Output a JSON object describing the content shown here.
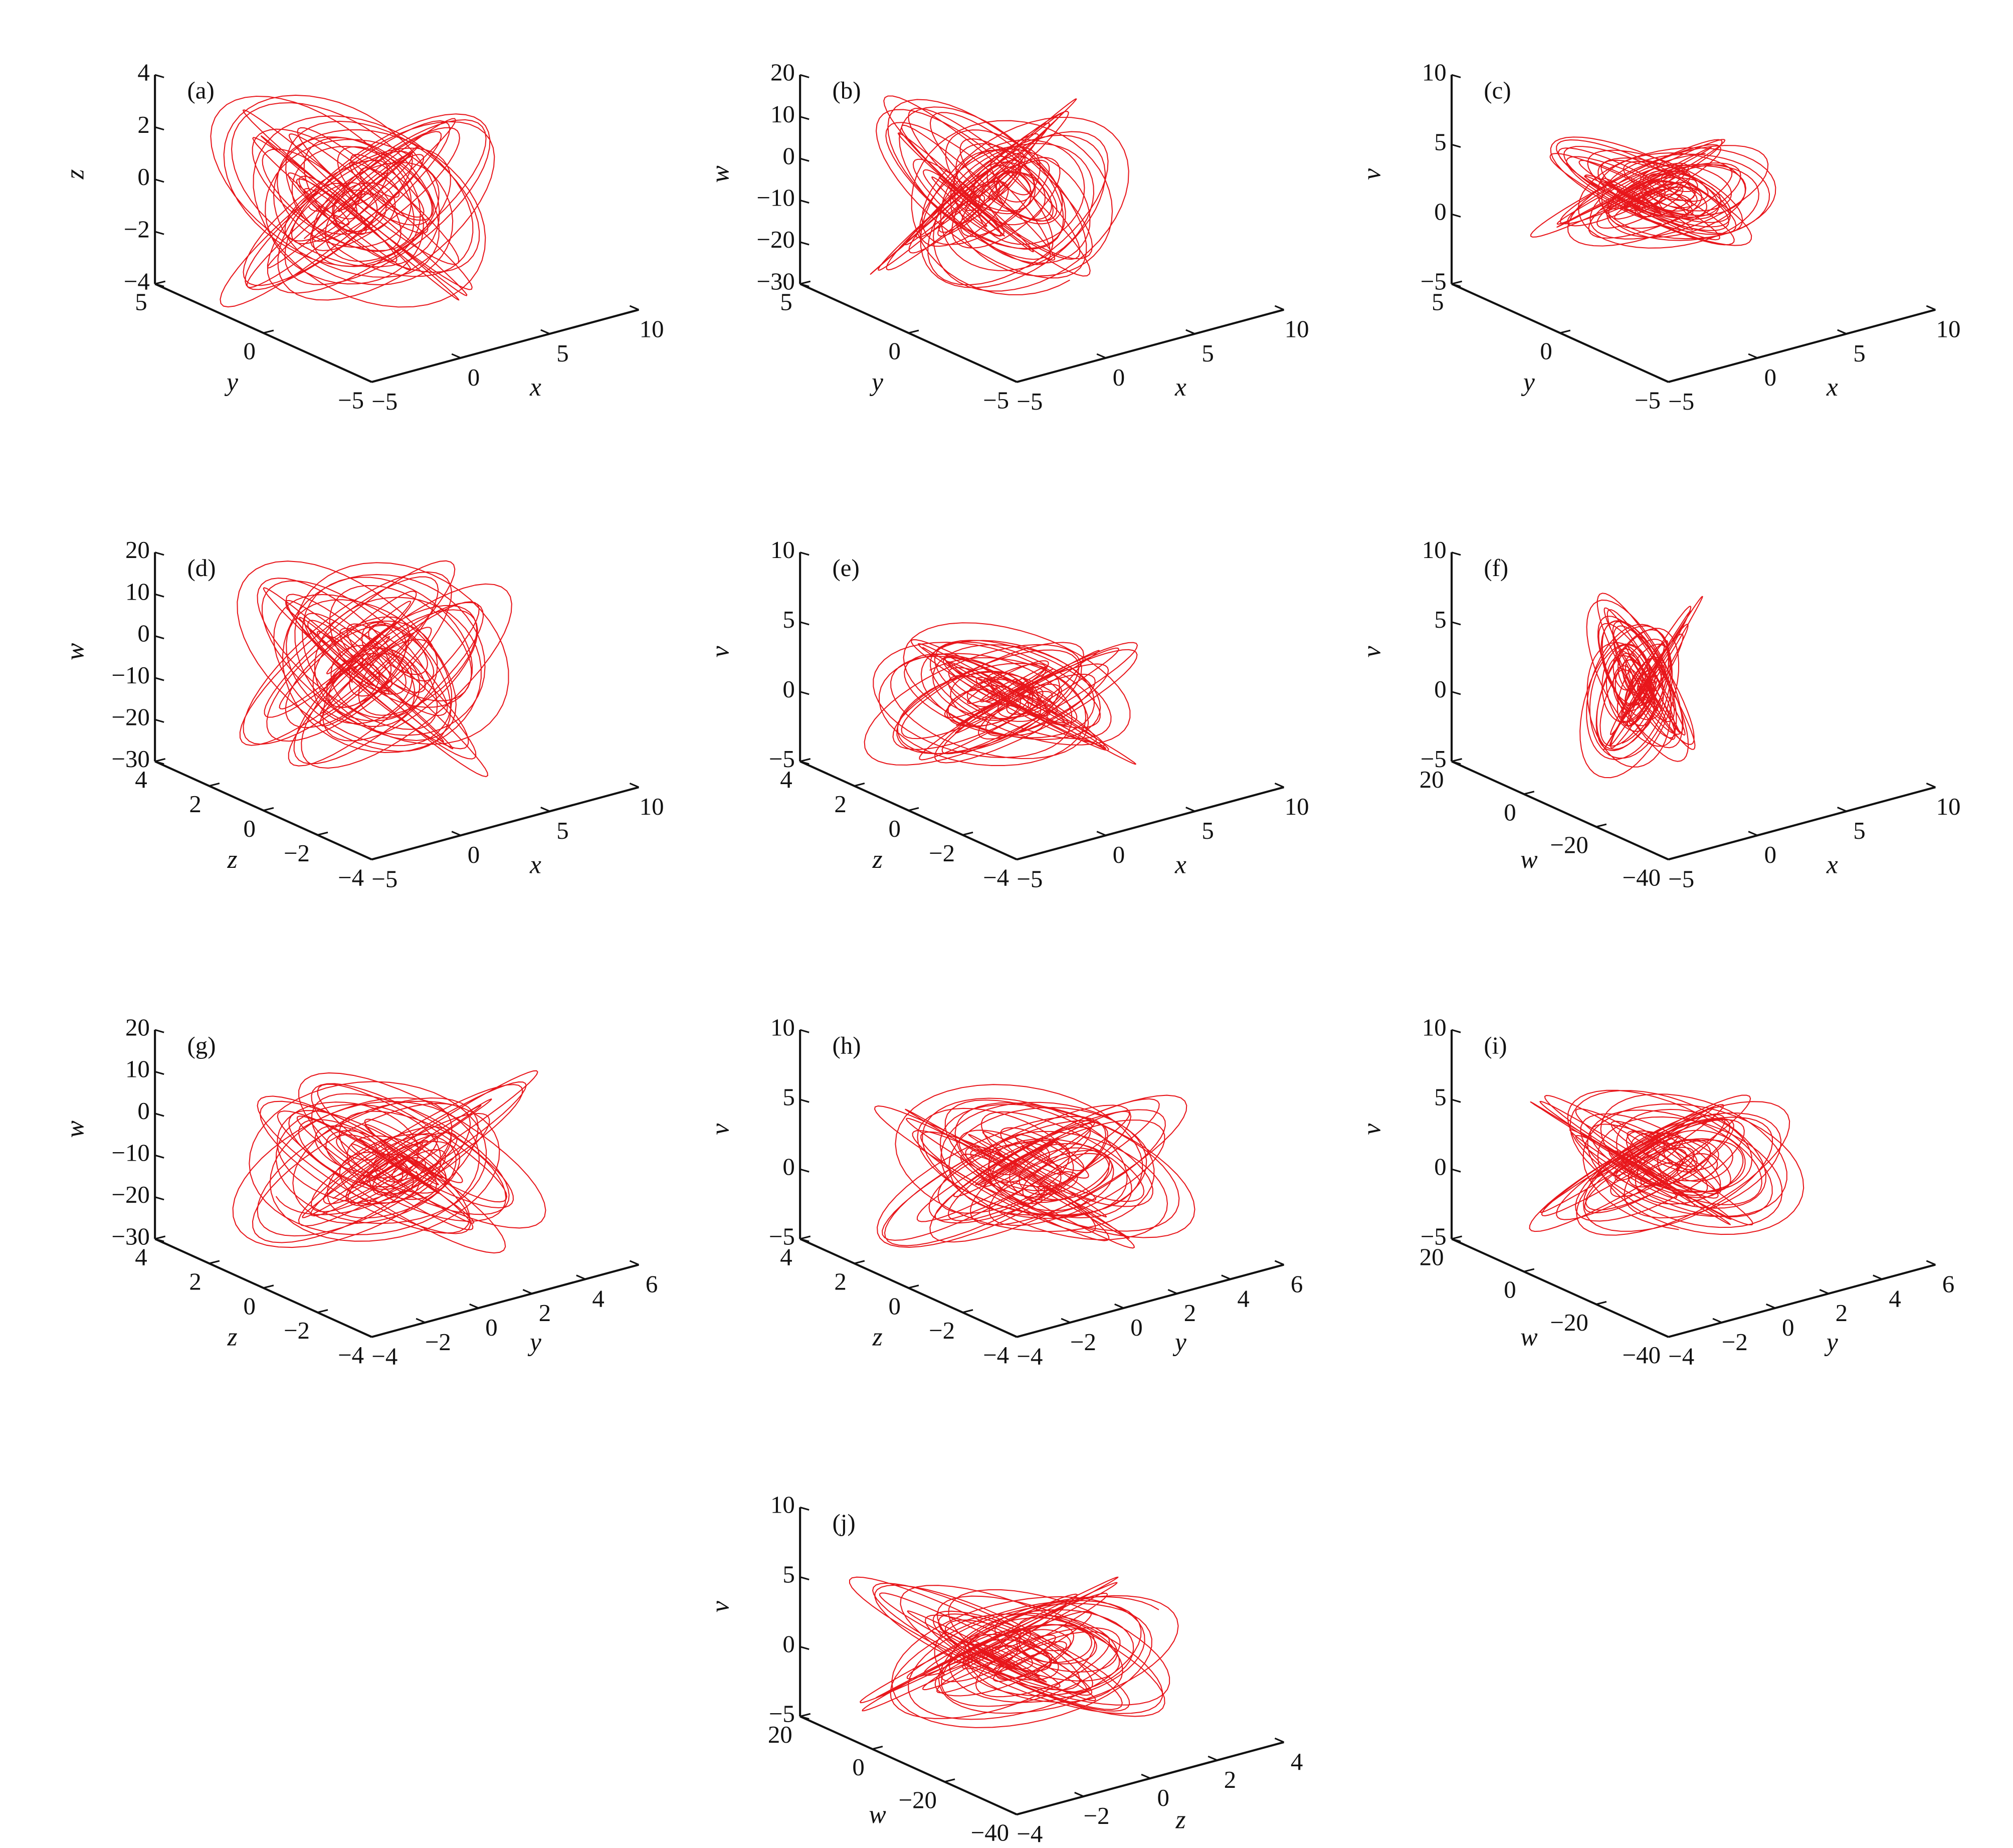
{
  "chart_data": [
    {
      "type": "line3d",
      "panel_label": "(a)",
      "color": "#e8161b",
      "vertical": {
        "label": "z",
        "lim": [
          -4,
          4
        ],
        "ticks": [
          {
            "value": -4,
            "label": "−4"
          },
          {
            "value": -2,
            "label": "−2"
          },
          0,
          2,
          4
        ]
      },
      "depth": {
        "label": "y",
        "lim": [
          -5,
          5
        ],
        "ticks": [
          {
            "value": -5,
            "label": "−5"
          },
          0,
          5
        ]
      },
      "horizontal": {
        "label": "x",
        "lim": [
          -5,
          10
        ],
        "ticks": [
          {
            "value": -5,
            "label": "−5"
          },
          0,
          5,
          10
        ]
      }
    },
    {
      "type": "line3d",
      "panel_label": "(b)",
      "color": "#e8161b",
      "vertical": {
        "label": "w",
        "lim": [
          -30,
          20
        ],
        "ticks": [
          {
            "value": -30,
            "label": "−30"
          },
          {
            "value": -20,
            "label": "−20"
          },
          {
            "value": -10,
            "label": "−10"
          },
          0,
          10,
          20
        ]
      },
      "depth": {
        "label": "y",
        "lim": [
          -5,
          5
        ],
        "ticks": [
          {
            "value": -5,
            "label": "−5"
          },
          0,
          5
        ]
      },
      "horizontal": {
        "label": "x",
        "lim": [
          -5,
          10
        ],
        "ticks": [
          {
            "value": -5,
            "label": "−5"
          },
          0,
          5,
          10
        ]
      }
    },
    {
      "type": "line3d",
      "panel_label": "(c)",
      "color": "#e8161b",
      "vertical": {
        "label": "v",
        "lim": [
          -5,
          10
        ],
        "ticks": [
          {
            "value": -5,
            "label": "−5"
          },
          0,
          5,
          10
        ]
      },
      "depth": {
        "label": "y",
        "lim": [
          -5,
          5
        ],
        "ticks": [
          {
            "value": -5,
            "label": "−5"
          },
          0,
          5
        ]
      },
      "horizontal": {
        "label": "x",
        "lim": [
          -5,
          10
        ],
        "ticks": [
          {
            "value": -5,
            "label": "−5"
          },
          0,
          5,
          10
        ]
      }
    },
    {
      "type": "line3d",
      "panel_label": "(d)",
      "color": "#e8161b",
      "vertical": {
        "label": "w",
        "lim": [
          -30,
          20
        ],
        "ticks": [
          {
            "value": -30,
            "label": "−30"
          },
          {
            "value": -20,
            "label": "−20"
          },
          {
            "value": -10,
            "label": "−10"
          },
          0,
          10,
          20
        ]
      },
      "depth": {
        "label": "z",
        "lim": [
          -4,
          4
        ],
        "ticks": [
          {
            "value": -4,
            "label": "−4"
          },
          {
            "value": -2,
            "label": "−2"
          },
          0,
          2,
          4
        ]
      },
      "horizontal": {
        "label": "x",
        "lim": [
          -5,
          10
        ],
        "ticks": [
          {
            "value": -5,
            "label": "−5"
          },
          0,
          5,
          10
        ]
      }
    },
    {
      "type": "line3d",
      "panel_label": "(e)",
      "color": "#e8161b",
      "vertical": {
        "label": "v",
        "lim": [
          -5,
          10
        ],
        "ticks": [
          {
            "value": -5,
            "label": "−5"
          },
          0,
          5,
          10
        ]
      },
      "depth": {
        "label": "z",
        "lim": [
          -4,
          4
        ],
        "ticks": [
          {
            "value": -4,
            "label": "−4"
          },
          {
            "value": -2,
            "label": "−2"
          },
          0,
          2,
          4
        ]
      },
      "horizontal": {
        "label": "x",
        "lim": [
          -5,
          10
        ],
        "ticks": [
          {
            "value": -5,
            "label": "−5"
          },
          0,
          5,
          10
        ]
      }
    },
    {
      "type": "line3d",
      "panel_label": "(f)",
      "color": "#e8161b",
      "vertical": {
        "label": "v",
        "lim": [
          -5,
          10
        ],
        "ticks": [
          {
            "value": -5,
            "label": "−5"
          },
          0,
          5,
          10
        ]
      },
      "depth": {
        "label": "w",
        "lim": [
          -40,
          20
        ],
        "ticks": [
          {
            "value": -40,
            "label": "−40"
          },
          {
            "value": -20,
            "label": "−20"
          },
          0,
          20
        ]
      },
      "horizontal": {
        "label": "x",
        "lim": [
          -5,
          10
        ],
        "ticks": [
          {
            "value": -5,
            "label": "−5"
          },
          0,
          5,
          10
        ]
      }
    },
    {
      "type": "line3d",
      "panel_label": "(g)",
      "color": "#e8161b",
      "vertical": {
        "label": "w",
        "lim": [
          -30,
          20
        ],
        "ticks": [
          {
            "value": -30,
            "label": "−30"
          },
          {
            "value": -20,
            "label": "−20"
          },
          {
            "value": -10,
            "label": "−10"
          },
          0,
          10,
          20
        ]
      },
      "depth": {
        "label": "z",
        "lim": [
          -4,
          4
        ],
        "ticks": [
          {
            "value": -4,
            "label": "−4"
          },
          {
            "value": -2,
            "label": "−2"
          },
          0,
          2,
          4
        ]
      },
      "horizontal": {
        "label": "y",
        "lim": [
          -4,
          6
        ],
        "ticks": [
          {
            "value": -4,
            "label": "−4"
          },
          {
            "value": -2,
            "label": "−2"
          },
          0,
          2,
          4,
          6
        ]
      }
    },
    {
      "type": "line3d",
      "panel_label": "(h)",
      "color": "#e8161b",
      "vertical": {
        "label": "v",
        "lim": [
          -5,
          10
        ],
        "ticks": [
          {
            "value": -5,
            "label": "−5"
          },
          0,
          5,
          10
        ]
      },
      "depth": {
        "label": "z",
        "lim": [
          -4,
          4
        ],
        "ticks": [
          {
            "value": -4,
            "label": "−4"
          },
          {
            "value": -2,
            "label": "−2"
          },
          0,
          2,
          4
        ]
      },
      "horizontal": {
        "label": "y",
        "lim": [
          -4,
          6
        ],
        "ticks": [
          {
            "value": -4,
            "label": "−4"
          },
          {
            "value": -2,
            "label": "−2"
          },
          0,
          2,
          4,
          6
        ]
      }
    },
    {
      "type": "line3d",
      "panel_label": "(i)",
      "color": "#e8161b",
      "vertical": {
        "label": "v",
        "lim": [
          -5,
          10
        ],
        "ticks": [
          {
            "value": -5,
            "label": "−5"
          },
          0,
          5,
          10
        ]
      },
      "depth": {
        "label": "w",
        "lim": [
          -40,
          20
        ],
        "ticks": [
          {
            "value": -40,
            "label": "−40"
          },
          {
            "value": -20,
            "label": "−20"
          },
          0,
          20
        ]
      },
      "horizontal": {
        "label": "y",
        "lim": [
          -4,
          6
        ],
        "ticks": [
          {
            "value": -4,
            "label": "−4"
          },
          {
            "value": -2,
            "label": "−2"
          },
          0,
          2,
          4,
          6
        ]
      }
    },
    {
      "type": "line3d",
      "panel_label": "(j)",
      "color": "#e8161b",
      "vertical": {
        "label": "v",
        "lim": [
          -5,
          10
        ],
        "ticks": [
          {
            "value": -5,
            "label": "−5"
          },
          0,
          5,
          10
        ]
      },
      "depth": {
        "label": "w",
        "lim": [
          -40,
          20
        ],
        "ticks": [
          {
            "value": -40,
            "label": "−40"
          },
          {
            "value": -20,
            "label": "−20"
          },
          0,
          20
        ]
      },
      "horizontal": {
        "label": "z",
        "lim": [
          -4,
          4
        ],
        "ticks": [
          {
            "value": -4,
            "label": "−4"
          },
          {
            "value": -2,
            "label": "−2"
          },
          0,
          2,
          4
        ]
      }
    }
  ]
}
